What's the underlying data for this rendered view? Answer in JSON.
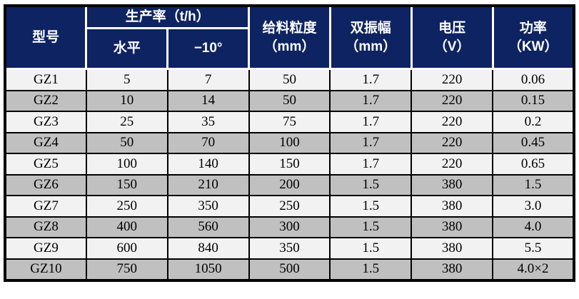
{
  "theme": {
    "header_bg": "#0e2361",
    "header_text": "#ffffff",
    "header_separator": "#ffffff",
    "row_light_bg": "#f2f2f2",
    "row_gray_bg": "#c0c0c0",
    "body_border": "#000000",
    "body_text": "#000000"
  },
  "table": {
    "header": {
      "model": "型号",
      "production_group": "生产率（t/h）",
      "horizontal": "水平",
      "incline": "−10°",
      "feed_size_line1": "给料粒度",
      "feed_size_line2": "（mm）",
      "amplitude_line1": "双振幅",
      "amplitude_line2": "（mm）",
      "voltage_line1": "电压",
      "voltage_line2": "（V）",
      "power_line1": "功率",
      "power_line2": "（KW）"
    },
    "rows": [
      {
        "model": "GZ1",
        "horizontal": "5",
        "incline": "7",
        "feed_size": "50",
        "amplitude": "1.7",
        "voltage": "220",
        "power": "0.06"
      },
      {
        "model": "GZ2",
        "horizontal": "10",
        "incline": "14",
        "feed_size": "50",
        "amplitude": "1.7",
        "voltage": "220",
        "power": "0.15"
      },
      {
        "model": "GZ3",
        "horizontal": "25",
        "incline": "35",
        "feed_size": "75",
        "amplitude": "1.7",
        "voltage": "220",
        "power": "0.2"
      },
      {
        "model": "GZ4",
        "horizontal": "50",
        "incline": "70",
        "feed_size": "100",
        "amplitude": "1.7",
        "voltage": "220",
        "power": "0.45"
      },
      {
        "model": "GZ5",
        "horizontal": "100",
        "incline": "140",
        "feed_size": "150",
        "amplitude": "1.7",
        "voltage": "220",
        "power": "0.65"
      },
      {
        "model": "GZ6",
        "horizontal": "150",
        "incline": "210",
        "feed_size": "200",
        "amplitude": "1.5",
        "voltage": "380",
        "power": "1.5"
      },
      {
        "model": "GZ7",
        "horizontal": "250",
        "incline": "350",
        "feed_size": "250",
        "amplitude": "1.5",
        "voltage": "380",
        "power": "3.0"
      },
      {
        "model": "GZ8",
        "horizontal": "400",
        "incline": "560",
        "feed_size": "300",
        "amplitude": "1.5",
        "voltage": "380",
        "power": "4.0"
      },
      {
        "model": "GZ9",
        "horizontal": "600",
        "incline": "840",
        "feed_size": "350",
        "amplitude": "1.5",
        "voltage": "380",
        "power": "5.5"
      },
      {
        "model": "GZ10",
        "horizontal": "750",
        "incline": "1050",
        "feed_size": "500",
        "amplitude": "1.5",
        "voltage": "380",
        "power": "4.0×2"
      }
    ]
  }
}
